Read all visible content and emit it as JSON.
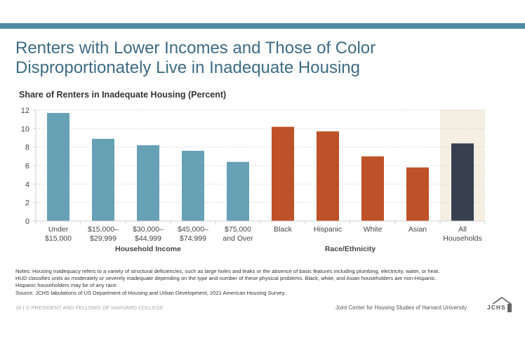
{
  "slide": {
    "title_line1": "Renters with Lower Incomes and Those of Color",
    "title_line2": "Disproportionately Live in Inadequate Housing",
    "footer_left": "16 | © PRESIDENT AND FELLOWS OF HARVARD COLLEGE",
    "footer_right": "Joint Center for Housing Studies of Harvard University",
    "logo_text": "JCHS",
    "notes_line1": "Notes:  Housing inadequacy refers to a variety of structural deficiencies, such as large holes and leaks or the absence of basic features including plumbing, electricity, water, or heat.",
    "notes_line2": "HUD classifies units as moderately or severely inadequate depending on the type and number of these physical problems. Black, white, and Asian householders are non-Hispanic.",
    "notes_line3": "Hispanic householders may be of any race.",
    "source": "Source: JCHS tabulations of US Department of Housing and Urban Development, 2021 American Housing Survey."
  },
  "colors": {
    "band": "#4e8aa3",
    "title": "#3d6b84",
    "income": "#67a1b5",
    "race": "#be5128",
    "total": "#36404f",
    "highlight_bg": "#f5efe3",
    "grid": "#d4d4d4",
    "axis": "#cfcfcf",
    "tick_text": "#444444"
  },
  "chart_data": {
    "type": "bar",
    "title": "Share of Renters in Inadequate Housing (Percent)",
    "xlabel": "",
    "ylabel": "",
    "ylim": [
      0,
      12
    ],
    "yticks": [
      0,
      2,
      4,
      6,
      8,
      10,
      12
    ],
    "grid": true,
    "legend": "none",
    "categories": [
      [
        "Under",
        "$15,000"
      ],
      [
        "$15,000–",
        "$29,999"
      ],
      [
        "$30,000–",
        "$44,999"
      ],
      [
        "$45,000–",
        "$74,999"
      ],
      [
        "$75,000",
        "and Over"
      ],
      [
        "Black"
      ],
      [
        "Hispanic"
      ],
      [
        "White"
      ],
      [
        "Asian"
      ],
      [
        "All",
        "Households"
      ]
    ],
    "values": [
      11.7,
      8.9,
      8.2,
      7.6,
      6.4,
      10.2,
      9.7,
      7.0,
      5.8,
      8.4
    ],
    "groups": [
      "income",
      "income",
      "income",
      "income",
      "income",
      "race",
      "race",
      "race",
      "race",
      "total"
    ],
    "group_labels": [
      {
        "label": "Household Income",
        "from": 0,
        "to": 4
      },
      {
        "label": "Race/Ethnicity",
        "from": 5,
        "to": 8
      }
    ],
    "highlight_category": 9
  }
}
